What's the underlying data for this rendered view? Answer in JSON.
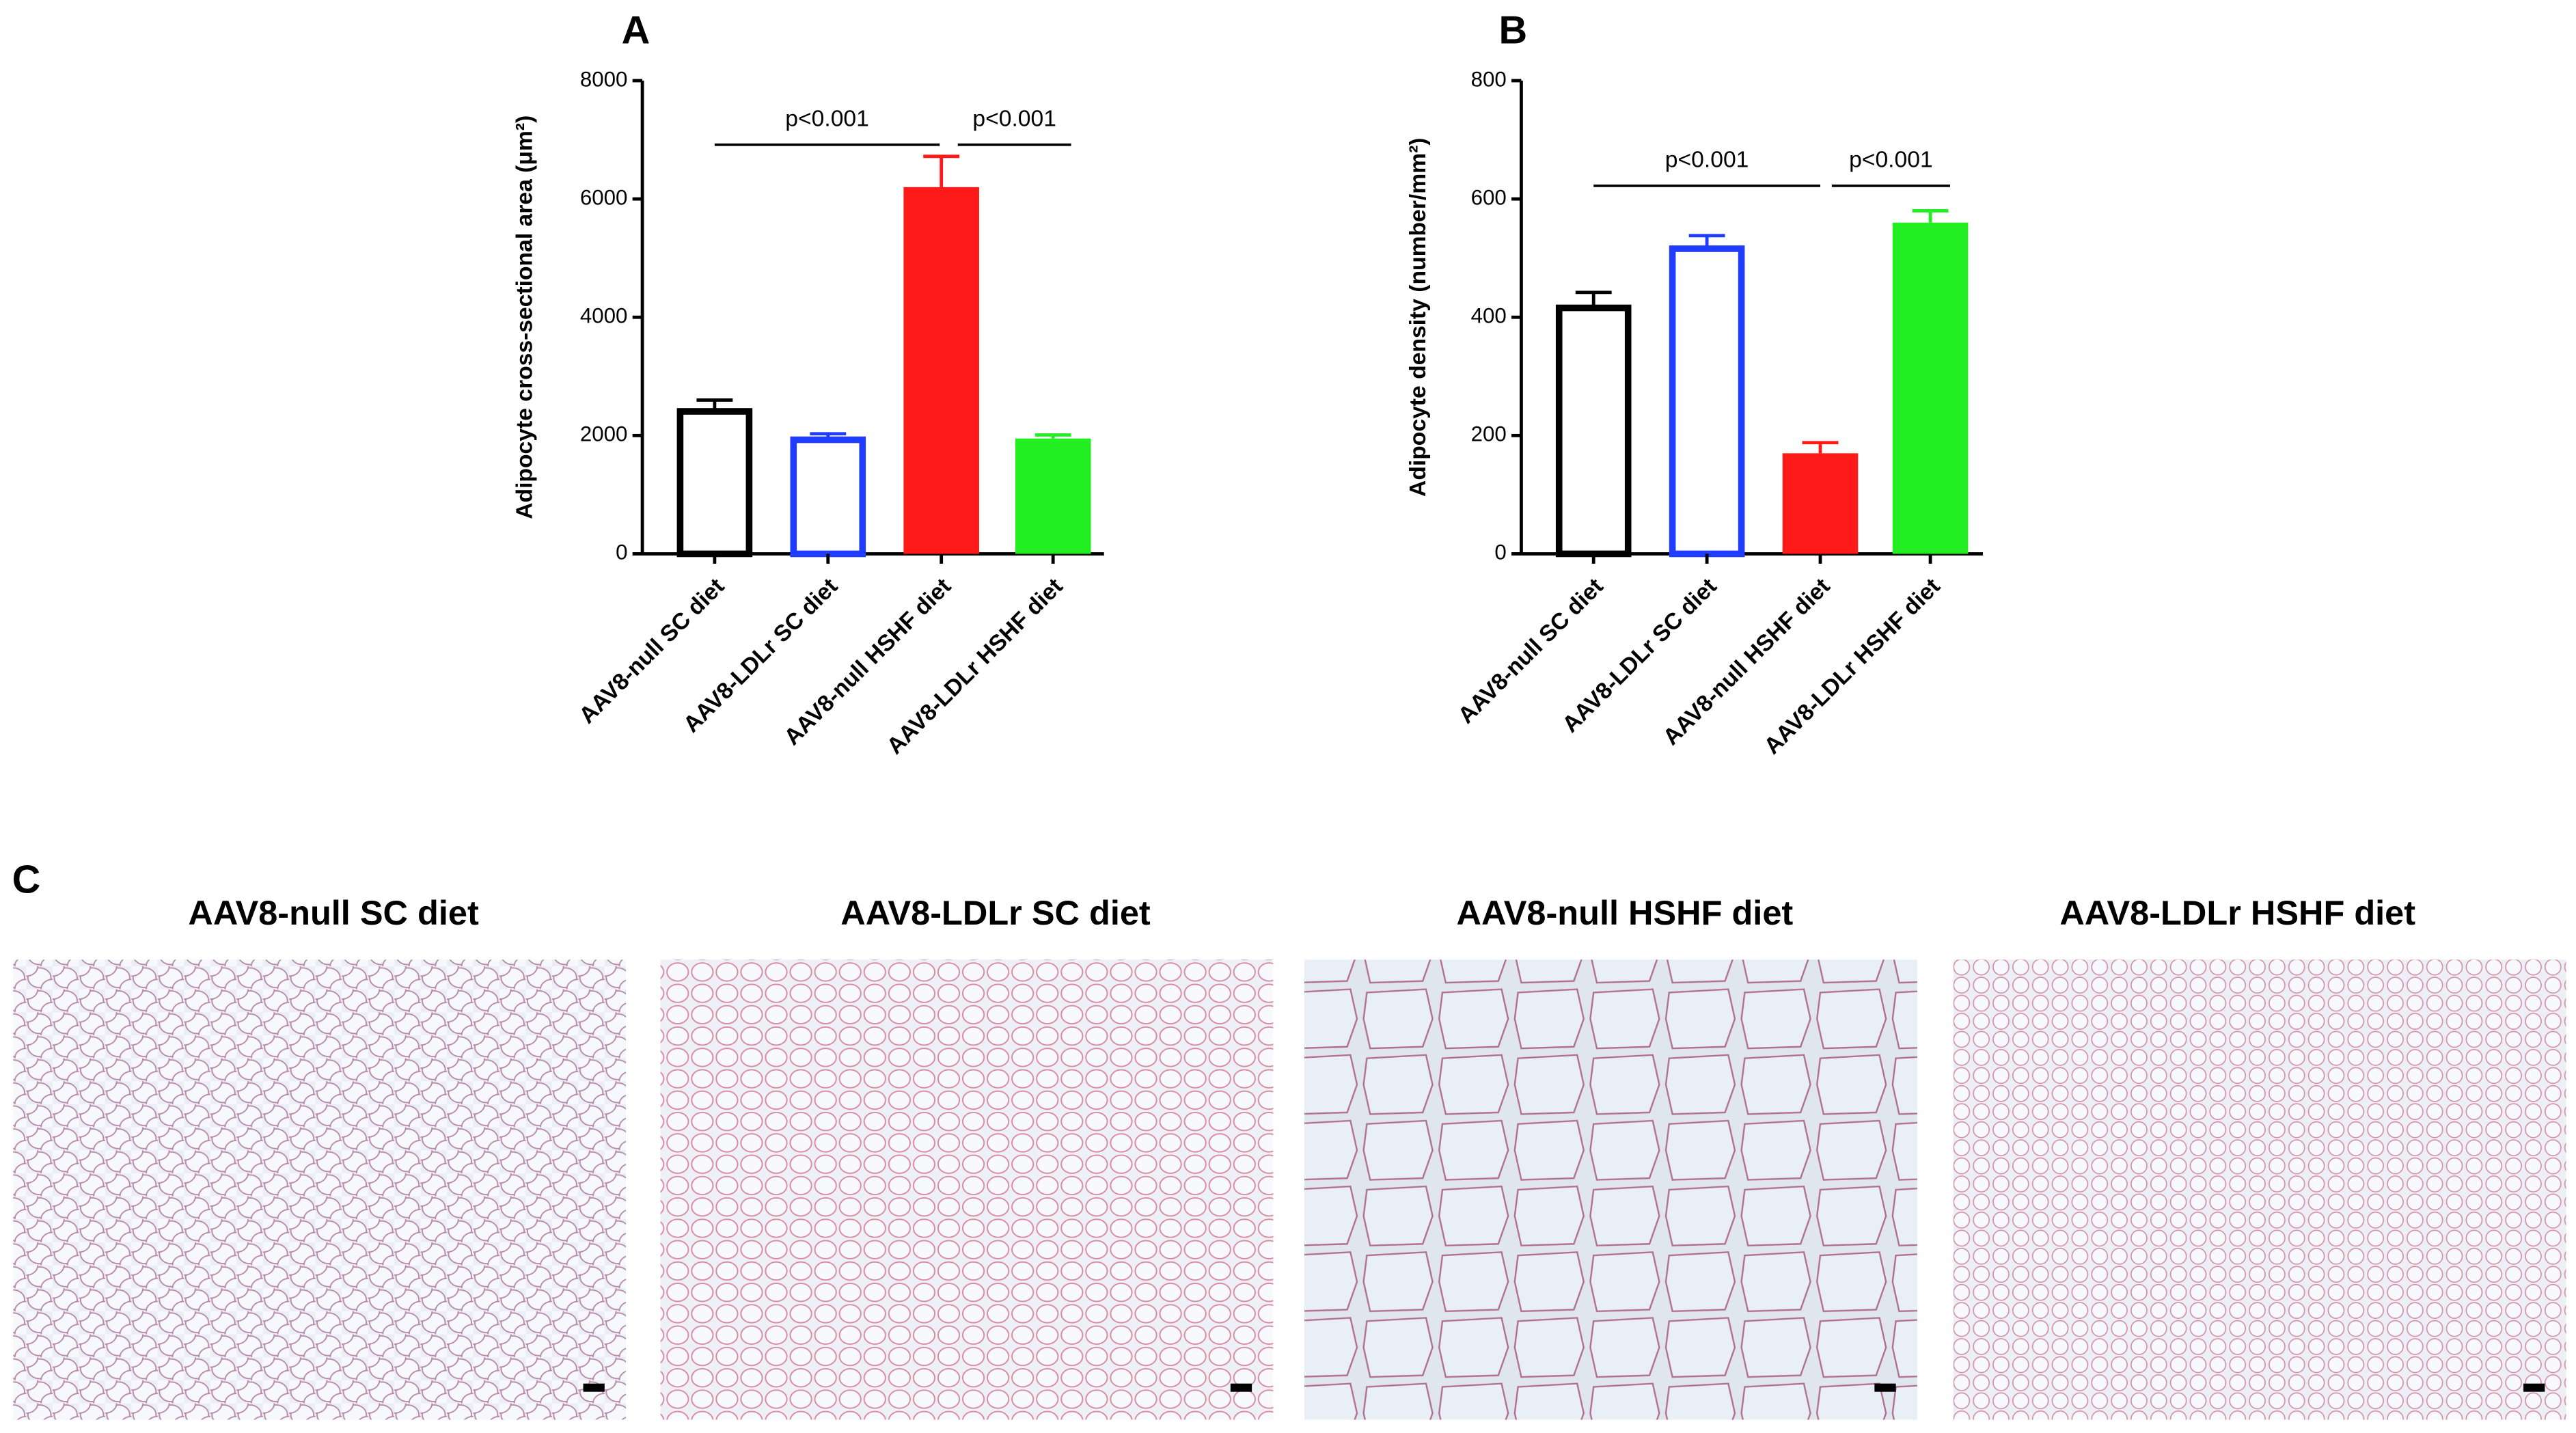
{
  "chart_data": [
    {
      "type": "bar",
      "panel": "A",
      "ylabel": "Adipocyte cross-sectional area (μm²)",
      "categories": [
        "AAV8-null SC diet",
        "AAV8-LDLr SC diet",
        "AAV8-null HSHF diet",
        "AAV8-LDLr HSHF diet"
      ],
      "values": [
        2450,
        1970,
        6200,
        1950
      ],
      "errors": [
        150,
        60,
        520,
        60
      ],
      "colors": [
        "#000000",
        "#1f3cff",
        "#ff1a1a",
        "#22ee22"
      ],
      "filled": [
        false,
        false,
        true,
        true
      ],
      "ylim": [
        0,
        8000
      ],
      "yticks": [
        0,
        2000,
        4000,
        6000,
        8000
      ],
      "annotations": [
        "p<0.001",
        "p<0.001"
      ]
    },
    {
      "type": "bar",
      "panel": "B",
      "ylabel": "Adipocyte density (number/mm²)",
      "categories": [
        "AAV8-null SC diet",
        "AAV8-LDLr SC diet",
        "AAV8-null HSHF diet",
        "AAV8-LDLr HSHF diet"
      ],
      "values": [
        420,
        520,
        170,
        560
      ],
      "errors": [
        22,
        18,
        18,
        20
      ],
      "colors": [
        "#000000",
        "#1f3cff",
        "#ff1a1a",
        "#22ee22"
      ],
      "filled": [
        false,
        false,
        true,
        true
      ],
      "ylim": [
        0,
        800
      ],
      "yticks": [
        0,
        200,
        400,
        600,
        800
      ],
      "annotations": [
        "p<0.001",
        "p<0.001"
      ]
    }
  ],
  "panel_c": {
    "label": "C",
    "images": [
      {
        "title": "AAV8-null SC diet"
      },
      {
        "title": "AAV8-LDLr SC diet"
      },
      {
        "title": "AAV8-null HSHF diet"
      },
      {
        "title": "AAV8-LDLr HSHF diet"
      }
    ]
  }
}
